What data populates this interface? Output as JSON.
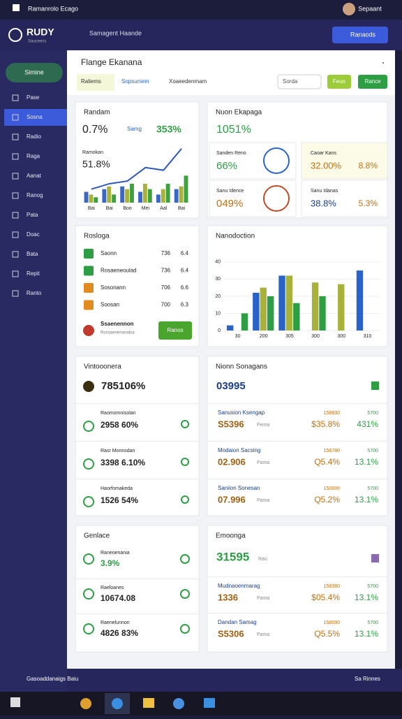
{
  "topbar": {
    "title": "Ramanrolo Ecago",
    "user": "Sepaant"
  },
  "app": {
    "logo": "RUDY",
    "logo_sub": "Sauceecs",
    "search": "Samagent Haande",
    "button": "Ranaods"
  },
  "sidebar": {
    "active_top": "Simine",
    "items": [
      "Pase",
      "Sosna",
      "Radio",
      "Raga",
      "Aanat",
      "Ranog",
      "Pata",
      "Doac",
      "Bata",
      "Repit",
      "Ranto"
    ]
  },
  "panel": {
    "title": "Flange Ekanana",
    "tabs": [
      "Raliems",
      "Sopsuniein",
      "Xoaeedenmam"
    ],
    "search": "Sorda",
    "button_1": "Feuo",
    "button_2": "Rance"
  },
  "cards": [
    {
      "title": "Randam",
      "value": "0.7%",
      "label": "Samg",
      "change": "353%",
      "sub_title": "Ramokan",
      "sub_value": "51.8%",
      "chart": {
        "type": "bar-line",
        "categories": [
          "Bai",
          "Bai",
          "Boo",
          "Mei",
          "Aal",
          "Bai"
        ],
        "ylim": [
          0,
          44
        ],
        "series": [
          {
            "color": "#3a66c4",
            "values": [
              8,
              10,
              12,
              8,
              6,
              10
            ]
          },
          {
            "color": "#a8b23a",
            "values": [
              6,
              12,
              10,
              14,
              10,
              12
            ]
          },
          {
            "color": "#3fa040",
            "values": [
              4,
              6,
              14,
              10,
              14,
              20
            ]
          }
        ],
        "line": {
          "color": "#2d57b8",
          "values": [
            10,
            14,
            16,
            26,
            24,
            40
          ]
        }
      }
    },
    {
      "title": "Nuon Ekapaga",
      "value": "1051%",
      "stats": [
        {
          "label": "Sanden Reno",
          "value": "66%"
        },
        {
          "label": "Sanu Idence",
          "value": "049%"
        }
      ],
      "side": [
        {
          "label": "Caoar Kans",
          "value": "32.00%",
          "change": "8.8%"
        },
        {
          "label": "Sanu Idanas",
          "value": "38.8%",
          "change": "5.3%"
        }
      ]
    },
    {
      "title": "Rosloga",
      "rows": [
        [
          "Saonn",
          "736",
          "6.4"
        ],
        [
          "Rosaeneoulad",
          "736",
          "6.4"
        ],
        [
          "Sosonann",
          "706",
          "6.6"
        ],
        [
          "Soosan",
          "700",
          "6.3"
        ]
      ],
      "footer": {
        "title": "Ssaenennon",
        "sub": "Rosoaenenonaloa",
        "button": "Ranos"
      }
    },
    {
      "title": "Nanodoction",
      "chart": {
        "type": "bar",
        "categories": [
          "30",
          "200",
          "305",
          "300",
          "300",
          "310"
        ],
        "ylim": [
          0,
          44
        ],
        "yticks": [
          0,
          10,
          20,
          30,
          40
        ],
        "series": [
          {
            "color": "#2a63c8",
            "values": [
              3,
              22,
              32,
              null,
              null,
              35
            ]
          },
          {
            "color": "#a8b23a",
            "values": [
              null,
              25,
              32,
              28,
              27,
              null
            ]
          },
          {
            "color": "#2e9e44",
            "values": [
              10,
              20,
              16,
              20,
              null,
              null
            ]
          }
        ]
      }
    },
    {
      "title": "Vintooonera",
      "value": "785106%",
      "rows": [
        {
          "label": "Raomomnisolan",
          "value": "2958 60%"
        },
        {
          "label": "Rasr Monnsdan",
          "value": "3398 6.10%"
        },
        {
          "label": "Haorfomakeda",
          "value": "1526 54%"
        }
      ]
    },
    {
      "title": "Nionn Sonagans",
      "value": "03995",
      "rows": [
        [
          "Sanusion Ksengap",
          "S5396",
          "Ferna",
          "158930",
          "$35.8%",
          "5700",
          "431%"
        ],
        [
          "Modaion Sacsing",
          "02.906",
          "Pama",
          "156780",
          "Q5.4%",
          "5700",
          "13.1%"
        ],
        [
          "Saniion Sonesan",
          "07.996",
          "Pama",
          "150000",
          "Q5.2%",
          "5700",
          "13.1%"
        ]
      ]
    },
    {
      "title": "Genlace",
      "rows": [
        {
          "label": "Raneoenania",
          "value": "3.9%"
        },
        {
          "label": "Raeloanes",
          "value": "10674.08"
        },
        {
          "label": "Raenelunnon",
          "value": "4826 83%"
        }
      ]
    },
    {
      "title": "Emoonga",
      "value": "31595",
      "label": "Rao",
      "rows": [
        [
          "Mudnaoenmarag",
          "1336",
          "Pama",
          "158380",
          "$05.4%",
          "5700",
          "13.1%"
        ],
        [
          "Dandan Samag",
          "S5306",
          "Pama",
          "158090",
          "Q5.5%",
          "5700",
          "13.1%"
        ]
      ]
    }
  ],
  "footer": {
    "left": "Gasoaddanaigs Baiu",
    "right": "Sa Rinnes"
  }
}
